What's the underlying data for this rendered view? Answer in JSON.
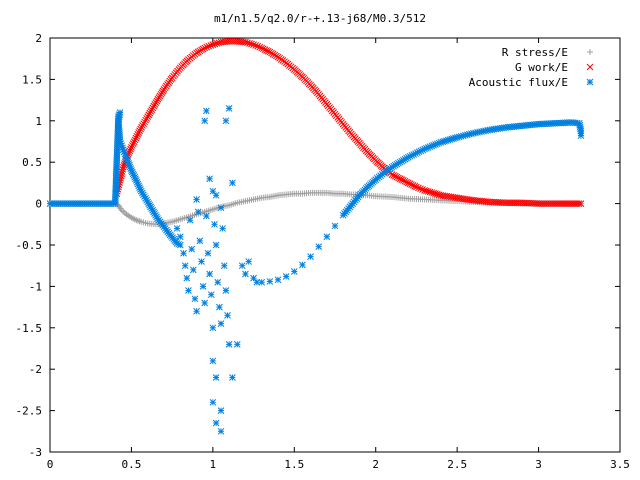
{
  "chart_data": {
    "type": "scatter",
    "title": "m1/n1.5/q2.0/r-+.13-j68/M0.3/512",
    "xlabel": "",
    "ylabel": "",
    "xlim": [
      0,
      3.5
    ],
    "ylim": [
      -3,
      2
    ],
    "xticks": [
      0,
      0.5,
      1,
      1.5,
      2,
      2.5,
      3,
      3.5
    ],
    "xtick_labels": [
      "0",
      "0.5",
      "1",
      "1.5",
      "2",
      "2.5",
      "3",
      "3.5"
    ],
    "yticks": [
      -3,
      -2.5,
      -2,
      -1.5,
      -1,
      -0.5,
      0,
      0.5,
      1,
      1.5,
      2
    ],
    "ytick_labels": [
      "-3",
      "-2.5",
      "-2",
      "-1.5",
      "-1",
      "-0.5",
      "0",
      "0.5",
      "1",
      "1.5",
      "2"
    ],
    "grid": false,
    "legend_position": "top-right",
    "series": [
      {
        "name": "R stress/E",
        "marker": "plus",
        "color": "#a0a0a0",
        "points": [
          [
            0.0,
            0.0
          ],
          [
            0.1,
            0.0
          ],
          [
            0.2,
            0.0
          ],
          [
            0.3,
            0.0
          ],
          [
            0.4,
            0.0
          ],
          [
            0.42,
            -0.02
          ],
          [
            0.44,
            -0.08
          ],
          [
            0.47,
            -0.13
          ],
          [
            0.5,
            -0.17
          ],
          [
            0.53,
            -0.2
          ],
          [
            0.56,
            -0.22
          ],
          [
            0.6,
            -0.24
          ],
          [
            0.65,
            -0.25
          ],
          [
            0.7,
            -0.24
          ],
          [
            0.75,
            -0.22
          ],
          [
            0.8,
            -0.19
          ],
          [
            0.85,
            -0.16
          ],
          [
            0.9,
            -0.13
          ],
          [
            0.95,
            -0.1
          ],
          [
            1.0,
            -0.07
          ],
          [
            1.05,
            -0.04
          ],
          [
            1.1,
            -0.02
          ],
          [
            1.15,
            0.01
          ],
          [
            1.2,
            0.03
          ],
          [
            1.25,
            0.05
          ],
          [
            1.3,
            0.07
          ],
          [
            1.35,
            0.08
          ],
          [
            1.4,
            0.1
          ],
          [
            1.45,
            0.11
          ],
          [
            1.5,
            0.12
          ],
          [
            1.55,
            0.12
          ],
          [
            1.6,
            0.13
          ],
          [
            1.65,
            0.13
          ],
          [
            1.7,
            0.13
          ],
          [
            1.75,
            0.12
          ],
          [
            1.8,
            0.12
          ],
          [
            1.85,
            0.11
          ],
          [
            1.9,
            0.11
          ],
          [
            1.95,
            0.1
          ],
          [
            2.0,
            0.09
          ],
          [
            2.1,
            0.08
          ],
          [
            2.2,
            0.06
          ],
          [
            2.3,
            0.05
          ],
          [
            2.4,
            0.04
          ],
          [
            2.5,
            0.03
          ],
          [
            2.6,
            0.02
          ],
          [
            2.7,
            0.01
          ],
          [
            2.8,
            0.01
          ],
          [
            2.9,
            0.0
          ],
          [
            3.0,
            0.0
          ],
          [
            3.1,
            0.0
          ],
          [
            3.2,
            0.0
          ],
          [
            3.26,
            0.0
          ]
        ]
      },
      {
        "name": "G work/E",
        "marker": "cross",
        "color": "#ff0000",
        "points": [
          [
            0.41,
            0.12
          ],
          [
            0.42,
            0.2
          ],
          [
            0.43,
            0.28
          ],
          [
            0.44,
            0.36
          ],
          [
            0.45,
            0.44
          ],
          [
            0.47,
            0.55
          ],
          [
            0.5,
            0.68
          ],
          [
            0.55,
            0.88
          ],
          [
            0.6,
            1.05
          ],
          [
            0.65,
            1.22
          ],
          [
            0.7,
            1.38
          ],
          [
            0.75,
            1.52
          ],
          [
            0.8,
            1.64
          ],
          [
            0.85,
            1.74
          ],
          [
            0.9,
            1.82
          ],
          [
            0.95,
            1.88
          ],
          [
            1.0,
            1.92
          ],
          [
            1.05,
            1.95
          ],
          [
            1.1,
            1.96
          ],
          [
            1.15,
            1.96
          ],
          [
            1.2,
            1.95
          ],
          [
            1.25,
            1.92
          ],
          [
            1.3,
            1.88
          ],
          [
            1.35,
            1.83
          ],
          [
            1.4,
            1.77
          ],
          [
            1.45,
            1.7
          ],
          [
            1.5,
            1.62
          ],
          [
            1.55,
            1.53
          ],
          [
            1.6,
            1.43
          ],
          [
            1.65,
            1.32
          ],
          [
            1.7,
            1.2
          ],
          [
            1.75,
            1.08
          ],
          [
            1.8,
            0.96
          ],
          [
            1.85,
            0.84
          ],
          [
            1.9,
            0.73
          ],
          [
            1.95,
            0.62
          ],
          [
            2.0,
            0.52
          ],
          [
            2.05,
            0.43
          ],
          [
            2.1,
            0.35
          ],
          [
            2.15,
            0.3
          ],
          [
            2.2,
            0.25
          ],
          [
            2.25,
            0.2
          ],
          [
            2.3,
            0.16
          ],
          [
            2.4,
            0.1
          ],
          [
            2.5,
            0.07
          ],
          [
            2.6,
            0.04
          ],
          [
            2.7,
            0.02
          ],
          [
            2.8,
            0.01
          ],
          [
            2.9,
            0.01
          ],
          [
            3.0,
            0.0
          ],
          [
            3.1,
            0.0
          ],
          [
            3.2,
            0.0
          ],
          [
            3.26,
            0.0
          ]
        ]
      },
      {
        "name": "Acoustic flux/E",
        "marker": "star",
        "color": "#0080e0",
        "points": [
          [
            0.0,
            0.0
          ],
          [
            0.1,
            0.0
          ],
          [
            0.2,
            0.0
          ],
          [
            0.3,
            0.0
          ],
          [
            0.4,
            0.0
          ],
          [
            0.42,
            1.05
          ],
          [
            0.43,
            1.1
          ],
          [
            0.42,
            1.0
          ],
          [
            0.43,
            0.75
          ],
          [
            0.45,
            0.65
          ],
          [
            0.47,
            0.55
          ],
          [
            0.5,
            0.4
          ],
          [
            0.53,
            0.28
          ],
          [
            0.56,
            0.15
          ],
          [
            0.6,
            0.02
          ],
          [
            0.63,
            -0.08
          ],
          [
            0.66,
            -0.18
          ],
          [
            0.7,
            -0.28
          ],
          [
            0.73,
            -0.36
          ],
          [
            0.76,
            -0.43
          ],
          [
            0.78,
            -0.48
          ],
          [
            0.8,
            -0.5
          ],
          [
            0.78,
            -0.3
          ],
          [
            0.8,
            -0.4
          ],
          [
            0.82,
            -0.6
          ],
          [
            0.83,
            -0.75
          ],
          [
            0.84,
            -0.9
          ],
          [
            0.85,
            -1.05
          ],
          [
            0.86,
            -0.2
          ],
          [
            0.87,
            -0.55
          ],
          [
            0.88,
            -0.8
          ],
          [
            0.89,
            -1.15
          ],
          [
            0.9,
            -1.3
          ],
          [
            0.91,
            -0.1
          ],
          [
            0.92,
            -0.45
          ],
          [
            0.93,
            -0.7
          ],
          [
            0.94,
            -1.0
          ],
          [
            0.95,
            -1.2
          ],
          [
            0.96,
            -0.15
          ],
          [
            0.97,
            -0.6
          ],
          [
            0.98,
            -0.85
          ],
          [
            0.99,
            -1.1
          ],
          [
            1.0,
            -1.5
          ],
          [
            1.01,
            -0.25
          ],
          [
            1.02,
            -0.5
          ],
          [
            1.03,
            -0.95
          ],
          [
            1.04,
            -1.25
          ],
          [
            1.05,
            -1.45
          ],
          [
            1.06,
            -0.3
          ],
          [
            1.07,
            -0.75
          ],
          [
            1.08,
            -1.05
          ],
          [
            1.09,
            -1.35
          ],
          [
            1.1,
            -1.7
          ],
          [
            0.95,
            1.0
          ],
          [
            0.96,
            1.12
          ],
          [
            1.08,
            1.0
          ],
          [
            1.1,
            1.15
          ],
          [
            1.0,
            0.15
          ],
          [
            1.02,
            0.1
          ],
          [
            1.05,
            -0.05
          ],
          [
            1.12,
            0.25
          ],
          [
            0.98,
            0.3
          ],
          [
            0.9,
            0.05
          ],
          [
            1.0,
            -1.9
          ],
          [
            1.02,
            -2.1
          ],
          [
            1.05,
            -2.5
          ],
          [
            1.0,
            -2.4
          ],
          [
            1.02,
            -2.65
          ],
          [
            1.05,
            -2.75
          ],
          [
            1.12,
            -2.1
          ],
          [
            1.15,
            -1.7
          ],
          [
            1.18,
            -0.75
          ],
          [
            1.2,
            -0.85
          ],
          [
            1.22,
            -0.7
          ],
          [
            1.25,
            -0.9
          ],
          [
            1.27,
            -0.95
          ],
          [
            1.3,
            -0.95
          ],
          [
            1.35,
            -0.94
          ],
          [
            1.4,
            -0.92
          ],
          [
            1.45,
            -0.88
          ],
          [
            1.5,
            -0.82
          ],
          [
            1.55,
            -0.74
          ],
          [
            1.6,
            -0.64
          ],
          [
            1.65,
            -0.52
          ],
          [
            1.7,
            -0.4
          ],
          [
            1.75,
            -0.27
          ],
          [
            1.8,
            -0.14
          ],
          [
            1.85,
            -0.02
          ],
          [
            1.9,
            0.1
          ],
          [
            1.95,
            0.2
          ],
          [
            2.0,
            0.29
          ],
          [
            2.05,
            0.37
          ],
          [
            2.1,
            0.44
          ],
          [
            2.15,
            0.5
          ],
          [
            2.2,
            0.56
          ],
          [
            2.3,
            0.66
          ],
          [
            2.4,
            0.74
          ],
          [
            2.5,
            0.8
          ],
          [
            2.6,
            0.85
          ],
          [
            2.7,
            0.89
          ],
          [
            2.8,
            0.92
          ],
          [
            2.9,
            0.94
          ],
          [
            3.0,
            0.96
          ],
          [
            3.1,
            0.97
          ],
          [
            3.2,
            0.98
          ],
          [
            3.25,
            0.97
          ],
          [
            3.26,
            0.88
          ],
          [
            3.26,
            0.82
          ]
        ]
      }
    ]
  }
}
